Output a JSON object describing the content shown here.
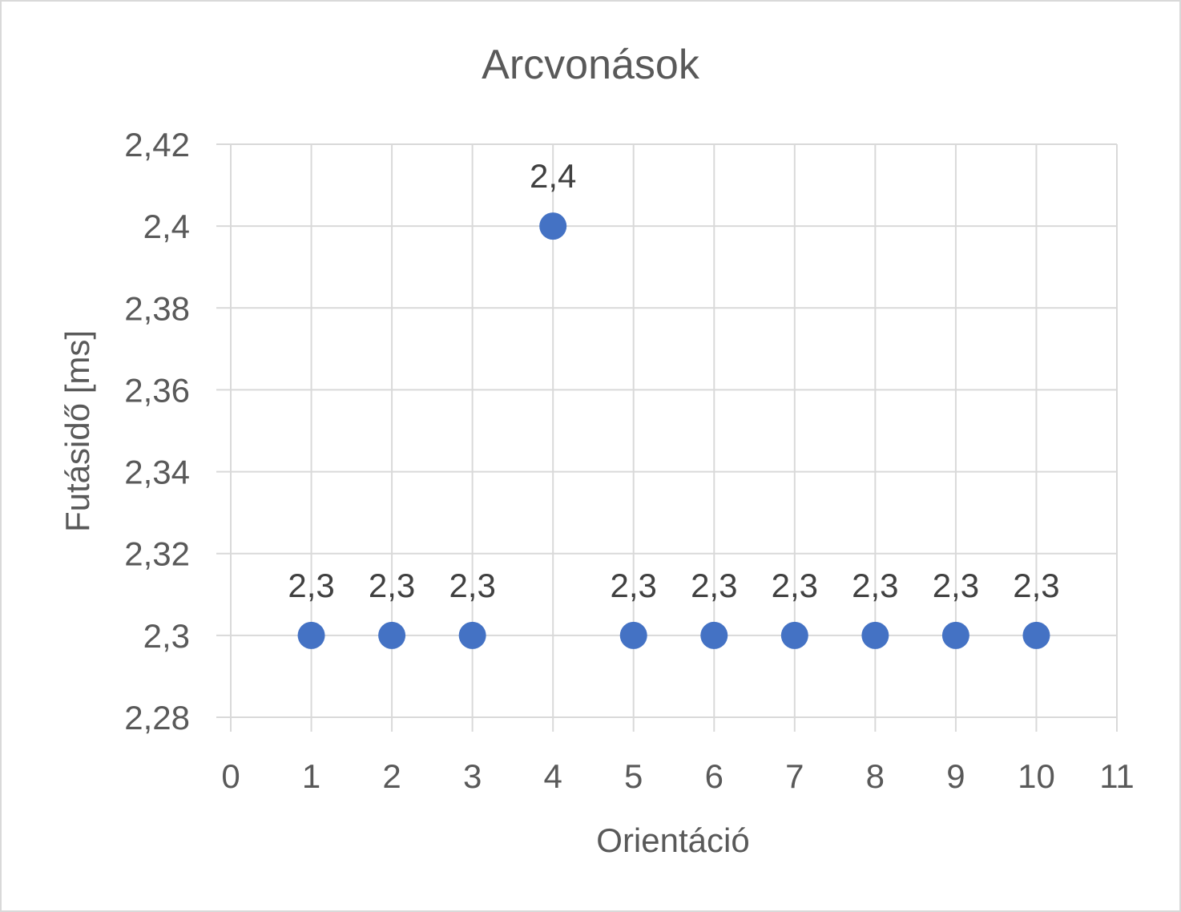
{
  "chart_data": {
    "type": "scatter",
    "title": "Arcvonások",
    "xlabel": "Orientáció",
    "ylabel": "Futásidő [ms]",
    "xlim": [
      0,
      11
    ],
    "ylim": [
      2.28,
      2.42
    ],
    "x_ticks": [
      "0",
      "1",
      "2",
      "3",
      "4",
      "5",
      "6",
      "7",
      "8",
      "9",
      "10",
      "11"
    ],
    "y_ticks": [
      "2,28",
      "2,3",
      "2,32",
      "2,34",
      "2,36",
      "2,38",
      "2,4",
      "2,42"
    ],
    "grid": true,
    "legend": "none",
    "marker_color": "#4472c4",
    "series": [
      {
        "x": [
          1,
          2,
          3,
          4,
          5,
          6,
          7,
          8,
          9,
          10
        ],
        "y": [
          2.3,
          2.3,
          2.3,
          2.4,
          2.3,
          2.3,
          2.3,
          2.3,
          2.3,
          2.3
        ],
        "data_labels": [
          "2,3",
          "2,3",
          "2,3",
          "2,4",
          "2,3",
          "2,3",
          "2,3",
          "2,3",
          "2,3",
          "2,3"
        ]
      }
    ]
  }
}
